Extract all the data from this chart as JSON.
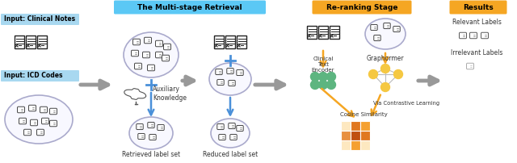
{
  "bg_color": "#ffffff",
  "fig_width": 6.4,
  "fig_height": 2.02,
  "title_multi": "The Multi-stage Retrieval",
  "title_multi_bg": "#5bc8f5",
  "title_rerank": "Re-ranking Stage",
  "title_rerank_bg": "#f5a623",
  "title_results": "Results",
  "title_results_bg": "#f5a623",
  "label_input_notes": "Input: Clinical Notes",
  "label_input_icd": "Input: ICD Codes",
  "label_aux": "Auxiliary\nKnowledge",
  "label_retrieved": "Retrieved label set",
  "label_reduced": "Reduced label set",
  "label_clinical_encoder": "Clinical\nText\nEncoder",
  "label_graphormer": "Graphormer",
  "label_cosine": "Cosine Similarity",
  "label_via_cl": "Via Contrastive Learning",
  "label_relevant": "Relevant Labels",
  "label_irrelevant": "Irrelevant Labels",
  "blue_arrow_color": "#4a90d9",
  "orange_arrow_color": "#f5a623",
  "gray_arrow_color": "#999999",
  "input_notes_bg": "#a8d8f0",
  "input_icd_bg": "#a8d8f0",
  "green_node_color": "#5db580",
  "yellow_node_color": "#f5c842",
  "cosine_colors": [
    "#fde8b0",
    "#e07820",
    "#f5b040",
    "#c86010"
  ],
  "ellipse_edge_color": "#aaaacc",
  "ellipse_fill_color": "#f8f8ff"
}
